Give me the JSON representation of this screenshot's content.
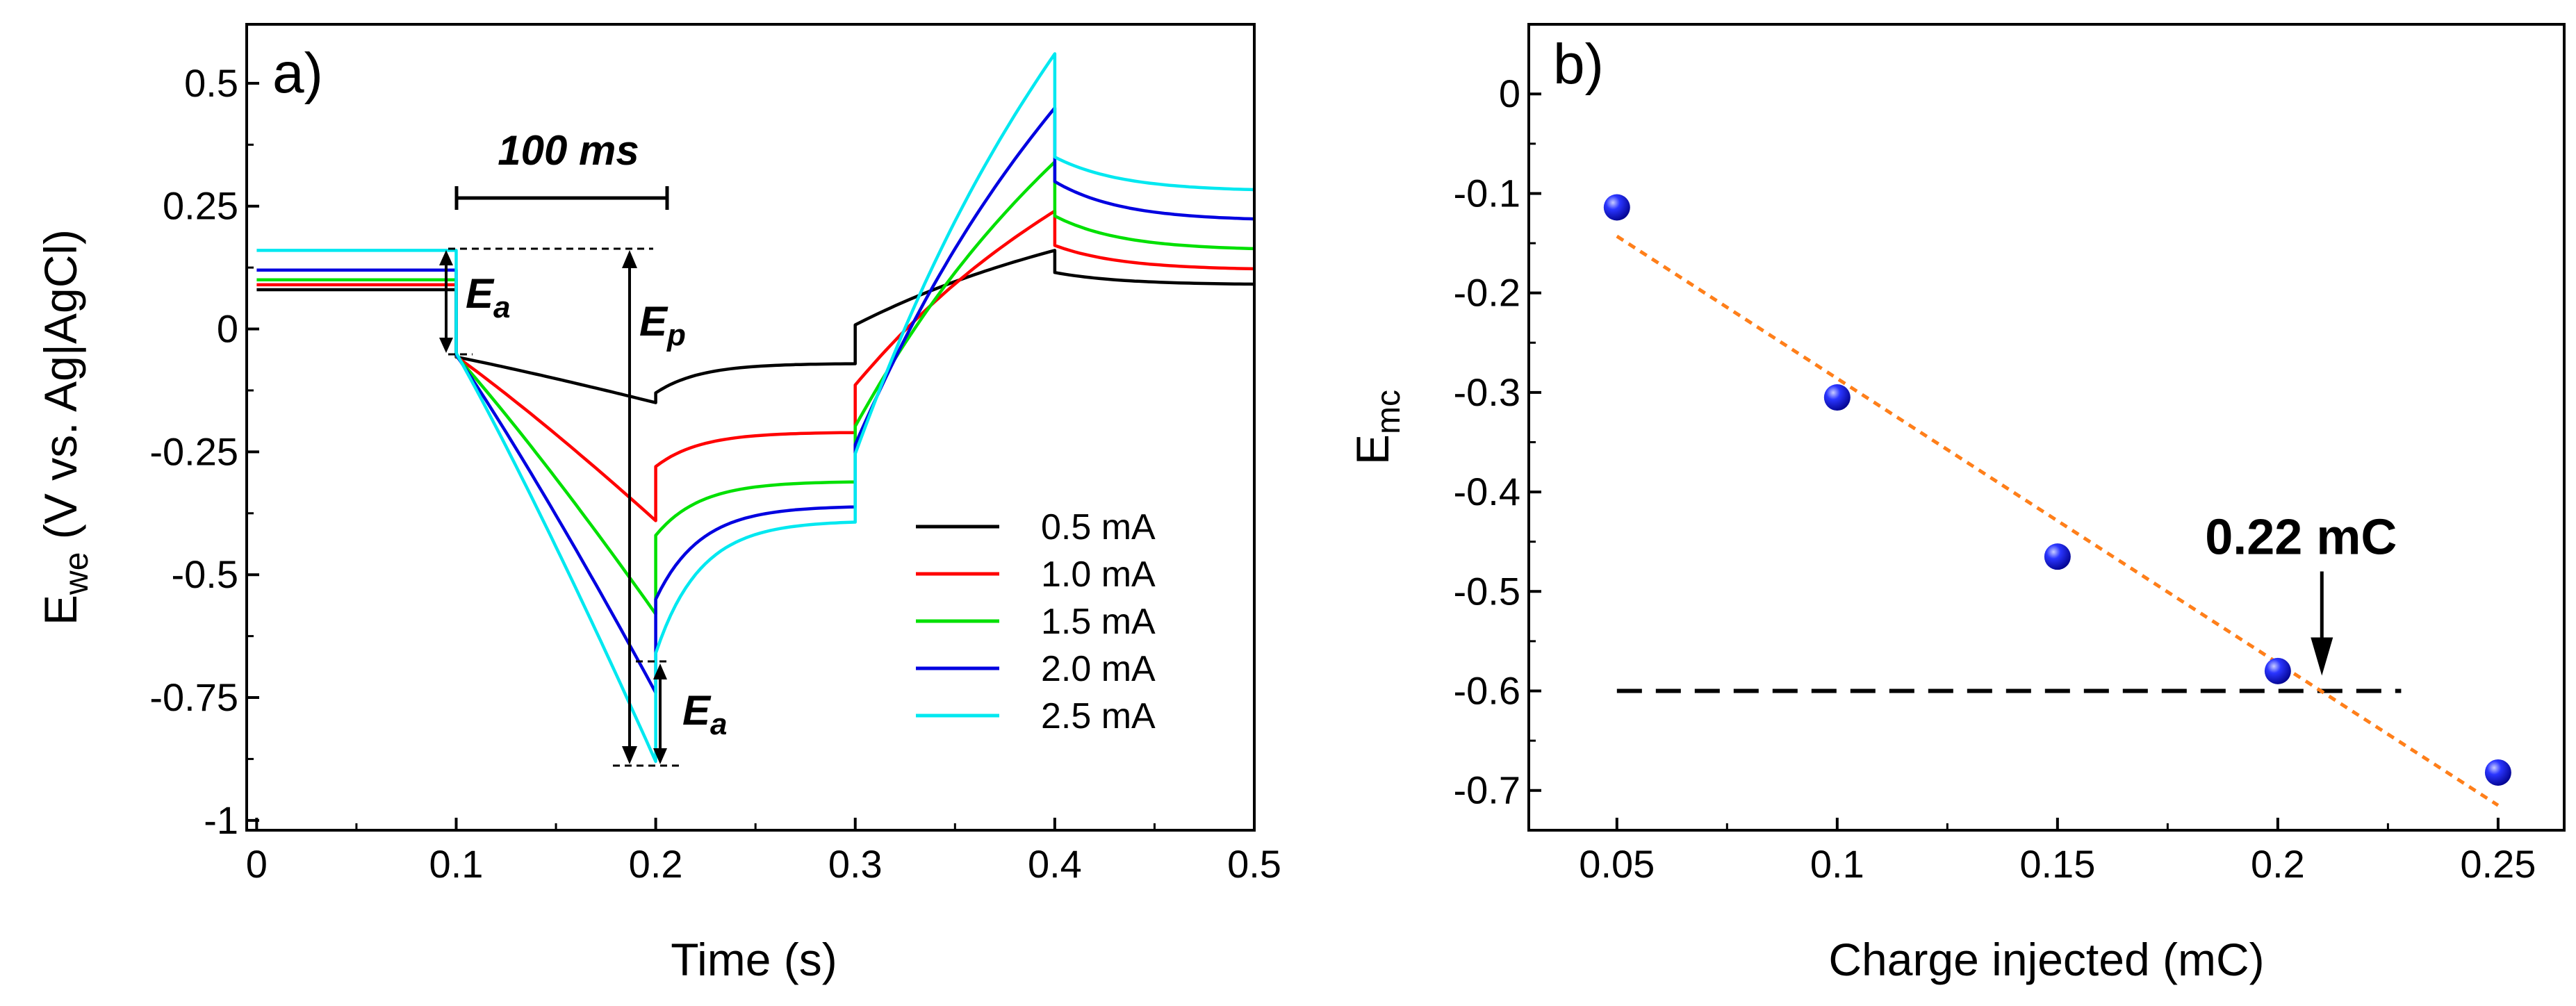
{
  "chart_data": [
    {
      "panel": "a)",
      "type": "line",
      "xlabel": "Time (s)",
      "ylabel_main": "E",
      "ylabel_sub": "we",
      "ylabel_rest": " (V vs. Ag|AgCl)",
      "xlim": [
        -0.005,
        0.5
      ],
      "ylim": [
        -1.02,
        0.62
      ],
      "xticks": [
        0,
        0.1,
        0.2,
        0.3,
        0.4,
        0.5
      ],
      "xtick_labels": [
        "0",
        "0.1",
        "0.2",
        "0.3",
        "0.4",
        "0.5"
      ],
      "yticks": [
        0.5,
        0.25,
        0,
        -0.25,
        -0.5,
        -0.75,
        -1
      ],
      "ytick_labels": [
        "0.5",
        "0.25",
        "0",
        "-0.25",
        "-0.5",
        "-0.75",
        "-1"
      ],
      "legend_position": "bottom-right",
      "series": [
        {
          "name": "0.5 mA",
          "color": "#000000",
          "base": 0.08,
          "end_cathodic": -0.15,
          "drop_after_cathodic": 0.02,
          "end_interpulse": -0.07,
          "end_anodic": 0.16,
          "drop_after_anodic": 0.045,
          "end_rest": 0.09
        },
        {
          "name": "1.0 mA",
          "color": "#ff0000",
          "base": 0.09,
          "end_cathodic": -0.39,
          "drop_after_cathodic": 0.11,
          "end_interpulse": -0.21,
          "end_anodic": 0.24,
          "drop_after_anodic": 0.07,
          "end_rest": 0.12
        },
        {
          "name": "1.5 mA",
          "color": "#00e000",
          "base": 0.1,
          "end_cathodic": -0.58,
          "drop_after_cathodic": 0.16,
          "end_interpulse": -0.31,
          "end_anodic": 0.34,
          "drop_after_anodic": 0.11,
          "end_rest": 0.16
        },
        {
          "name": "2.0 mA",
          "color": "#0000e0",
          "base": 0.12,
          "end_cathodic": -0.74,
          "drop_after_cathodic": 0.19,
          "end_interpulse": -0.36,
          "end_anodic": 0.45,
          "drop_after_anodic": 0.15,
          "end_rest": 0.22
        },
        {
          "name": "2.5 mA",
          "color": "#00e8f0",
          "base": 0.16,
          "end_cathodic": -0.88,
          "drop_after_cathodic": 0.22,
          "end_interpulse": -0.39,
          "end_anodic": 0.56,
          "drop_after_anodic": 0.21,
          "end_rest": 0.28
        }
      ],
      "annotations": {
        "scale_bar": "100 ms",
        "ea_label": "E",
        "ea_sub": "a",
        "ep_label": "E",
        "ep_sub": "p"
      }
    },
    {
      "panel": "b)",
      "type": "scatter",
      "xlabel": "Charge injected (mC)",
      "ylabel_main": "E",
      "ylabel_sub": "mc",
      "xlim": [
        0.03,
        0.265
      ],
      "ylim": [
        -0.74,
        0.07
      ],
      "xticks": [
        0.05,
        0.1,
        0.15,
        0.2,
        0.25
      ],
      "xtick_labels": [
        "0.05",
        "0.1",
        "0.15",
        "0.2",
        "0.25"
      ],
      "yticks": [
        0,
        -0.1,
        -0.2,
        -0.3,
        -0.4,
        -0.5,
        -0.6,
        -0.7
      ],
      "ytick_labels": [
        "0",
        "-0.1",
        "-0.2",
        "-0.3",
        "-0.4",
        "-0.5",
        "-0.6",
        "-0.7"
      ],
      "points": [
        {
          "x": 0.05,
          "y": -0.114
        },
        {
          "x": 0.1,
          "y": -0.305
        },
        {
          "x": 0.15,
          "y": -0.465
        },
        {
          "x": 0.2,
          "y": -0.58
        },
        {
          "x": 0.25,
          "y": -0.682
        }
      ],
      "fit_line": {
        "x1": 0.05,
        "y1": -0.143,
        "x2": 0.25,
        "y2": -0.715,
        "color": "#ff7f1a"
      },
      "threshold": {
        "y": -0.6,
        "x_from": 0.05,
        "x_to": 0.228
      },
      "arrow_annotation": {
        "text": "0.22 mC",
        "x": 0.21
      }
    }
  ]
}
